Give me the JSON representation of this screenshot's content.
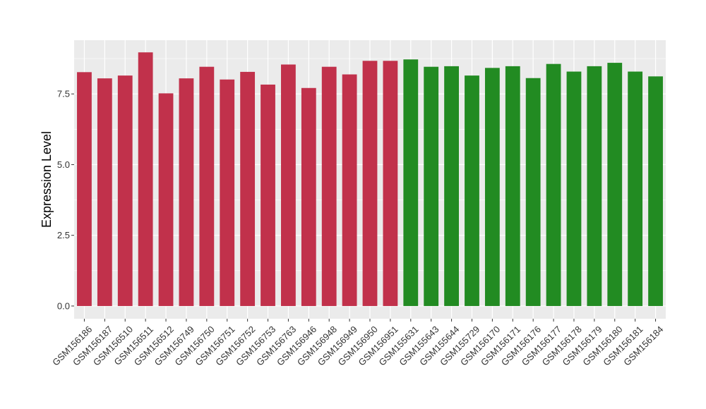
{
  "chart_data": {
    "type": "bar",
    "ylabel": "Expression Level",
    "xlabel": "",
    "ylim": [
      -0.45,
      9.4
    ],
    "yticks": [
      0.0,
      2.5,
      5.0,
      7.5
    ],
    "ytick_labels": [
      "0.0",
      "2.5",
      "5.0",
      "7.5"
    ],
    "grid": true,
    "legend": "none",
    "categories": [
      "GSM156186",
      "GSM156187",
      "GSM156510",
      "GSM156511",
      "GSM156512",
      "GSM156749",
      "GSM156750",
      "GSM156751",
      "GSM156752",
      "GSM156753",
      "GSM156763",
      "GSM156946",
      "GSM156948",
      "GSM156949",
      "GSM156950",
      "GSM156951",
      "GSM155631",
      "GSM155643",
      "GSM155644",
      "GSM155729",
      "GSM156170",
      "GSM156171",
      "GSM156176",
      "GSM156177",
      "GSM156178",
      "GSM156179",
      "GSM156180",
      "GSM156181",
      "GSM156184"
    ],
    "values": [
      8.27,
      8.05,
      8.15,
      8.97,
      7.52,
      8.05,
      8.46,
      8.01,
      8.28,
      7.83,
      8.54,
      7.71,
      8.46,
      8.19,
      8.67,
      8.67,
      8.72,
      8.46,
      8.48,
      8.15,
      8.42,
      8.48,
      8.06,
      8.56,
      8.29,
      8.48,
      8.6,
      8.29,
      8.12
    ],
    "bar_colors": [
      "#c1314b",
      "#c1314b",
      "#c1314b",
      "#c1314b",
      "#c1314b",
      "#c1314b",
      "#c1314b",
      "#c1314b",
      "#c1314b",
      "#c1314b",
      "#c1314b",
      "#c1314b",
      "#c1314b",
      "#c1314b",
      "#c1314b",
      "#c1314b",
      "#228b22",
      "#228b22",
      "#228b22",
      "#228b22",
      "#228b22",
      "#228b22",
      "#228b22",
      "#228b22",
      "#228b22",
      "#228b22",
      "#228b22",
      "#228b22",
      "#228b22"
    ],
    "panel_background": "#ebebeb",
    "gridline_color": "#ffffff"
  }
}
